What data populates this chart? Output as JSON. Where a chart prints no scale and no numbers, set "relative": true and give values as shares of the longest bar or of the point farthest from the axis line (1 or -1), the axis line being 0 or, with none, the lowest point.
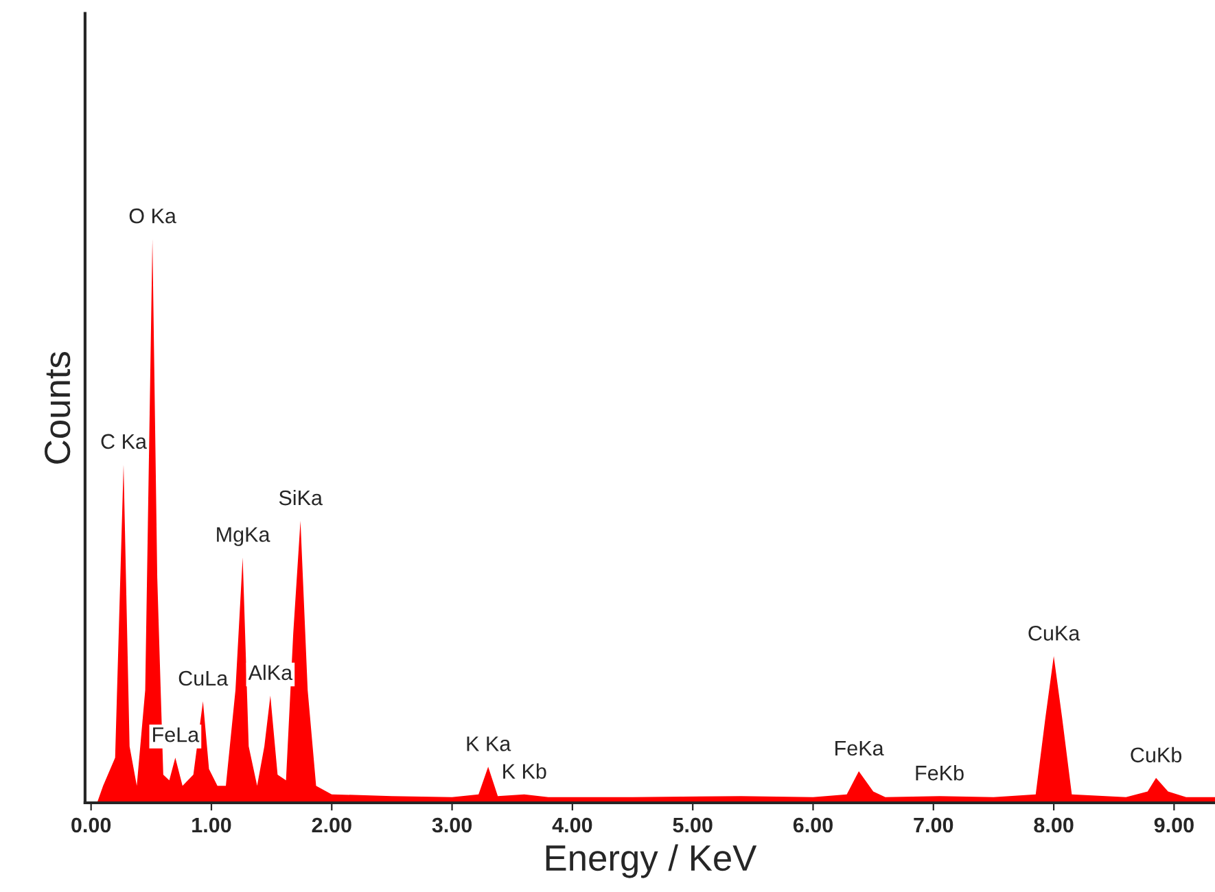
{
  "chart_data": {
    "type": "area",
    "relative": true,
    "xlabel": "Energy / KeV",
    "ylabel": "Counts",
    "xlim": [
      -0.05,
      9.34
    ],
    "xticks": [
      {
        "value": 0,
        "label": "0.00"
      },
      {
        "value": 1,
        "label": "1.00"
      },
      {
        "value": 2,
        "label": "2.00"
      },
      {
        "value": 3,
        "label": "3.00"
      },
      {
        "value": 4,
        "label": "4.00"
      },
      {
        "value": 5,
        "label": "5.00"
      },
      {
        "value": 6,
        "label": "6.00"
      },
      {
        "value": 7,
        "label": "7.00"
      },
      {
        "value": 8,
        "label": "8.00"
      },
      {
        "value": 9,
        "label": "9.00"
      }
    ],
    "grid": false,
    "series": [
      {
        "color": "#ff0000",
        "x": [
          0.05,
          0.1,
          0.2,
          0.27,
          0.32,
          0.38,
          0.45,
          0.51,
          0.55,
          0.6,
          0.65,
          0.7,
          0.76,
          0.85,
          0.93,
          0.98,
          1.05,
          1.12,
          1.2,
          1.26,
          1.31,
          1.38,
          1.44,
          1.49,
          1.55,
          1.62,
          1.68,
          1.74,
          1.8,
          1.87,
          2.0,
          2.5,
          3.0,
          3.22,
          3.3,
          3.38,
          3.6,
          3.8,
          4.5,
          5.4,
          6.0,
          6.28,
          6.38,
          6.5,
          6.6,
          7.05,
          7.5,
          7.85,
          7.93,
          8.0,
          8.07,
          8.15,
          8.6,
          8.78,
          8.85,
          8.95,
          9.1,
          9.34
        ],
        "values": [
          0.0,
          0.03,
          0.08,
          0.6,
          0.1,
          0.03,
          0.2,
          1.0,
          0.4,
          0.05,
          0.04,
          0.08,
          0.03,
          0.05,
          0.18,
          0.06,
          0.03,
          0.03,
          0.2,
          0.435,
          0.1,
          0.03,
          0.1,
          0.19,
          0.05,
          0.04,
          0.3,
          0.5,
          0.2,
          0.03,
          0.015,
          0.012,
          0.01,
          0.015,
          0.064,
          0.012,
          0.015,
          0.01,
          0.01,
          0.012,
          0.01,
          0.015,
          0.056,
          0.02,
          0.01,
          0.012,
          0.01,
          0.015,
          0.15,
          0.26,
          0.15,
          0.015,
          0.01,
          0.02,
          0.044,
          0.02,
          0.01,
          0.01
        ]
      }
    ],
    "annotations": [
      {
        "text": "C Ka",
        "x": 0.27,
        "y": 0.6
      },
      {
        "text": "O Ka",
        "x": 0.51,
        "y": 1.0
      },
      {
        "text": "FeLa",
        "x": 0.7,
        "y": 0.08
      },
      {
        "text": "CuLa",
        "x": 0.93,
        "y": 0.18
      },
      {
        "text": "MgKa",
        "x": 1.26,
        "y": 0.435
      },
      {
        "text": "AlKa",
        "x": 1.49,
        "y": 0.19
      },
      {
        "text": "SiKa",
        "x": 1.74,
        "y": 0.5
      },
      {
        "text": "K Ka",
        "x": 3.3,
        "y": 0.064
      },
      {
        "text": "K Kb",
        "x": 3.6,
        "y": 0.015
      },
      {
        "text": "FeKa",
        "x": 6.38,
        "y": 0.056
      },
      {
        "text": "FeKb",
        "x": 7.05,
        "y": 0.012
      },
      {
        "text": "CuKa",
        "x": 8.0,
        "y": 0.26
      },
      {
        "text": "CuKb",
        "x": 8.85,
        "y": 0.044
      }
    ]
  }
}
